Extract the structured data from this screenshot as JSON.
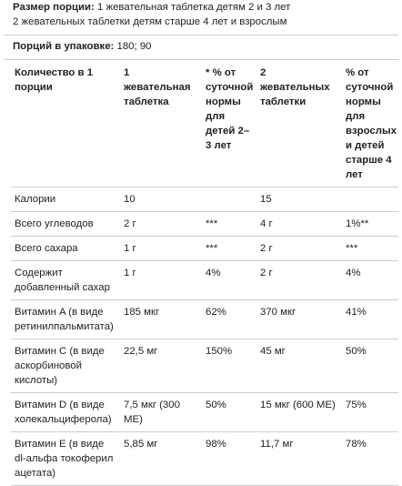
{
  "serving": {
    "label": "Размер порции:",
    "lines": [
      "1 жевательная таблетка детям 2 и 3 лет",
      "2 жевательных таблетки детям старше 4 лет и взрослым"
    ]
  },
  "servings_per_pack": {
    "label": "Порций в упаковке:",
    "text": "180; 90"
  },
  "table": {
    "header": [
      "Количество в 1 порции",
      "1 жевательная таблетка",
      "* % от суточной нормы для детей 2–3 лет",
      "2 жевательных таблетки",
      "% от суточной нормы для взрослых и детей старше 4 лет"
    ],
    "rows": [
      [
        "Калории",
        "10",
        null,
        "15",
        null
      ],
      [
        "Всего углеводов",
        "2 г",
        "***",
        "4 г",
        "1%**"
      ],
      [
        "Всего сахара",
        "1 г",
        "***",
        "2 г",
        "***"
      ],
      [
        "Содержит добавленный сахар",
        "1 г",
        "4%",
        "2 г",
        "4%"
      ],
      [
        "Витамин A (в виде ретинилпальмитата)",
        "185 мкг",
        "62%",
        "370 мкг",
        "41%"
      ],
      [
        "Витамин C (в виде аскорбиновой кислоты)",
        "22,5 мг",
        "150%",
        "45 мг",
        "50%"
      ],
      [
        "Витамин D (в виде холекальциферола)",
        "7,5 мкг (300 МЕ)",
        "50%",
        "15 мкг (600 МЕ)",
        "75%"
      ],
      [
        "Витамин E (в виде dl-альфа токоферил ацетата)",
        "5,85 мг",
        "98%",
        "11,7 мг",
        "78%"
      ]
    ]
  }
}
